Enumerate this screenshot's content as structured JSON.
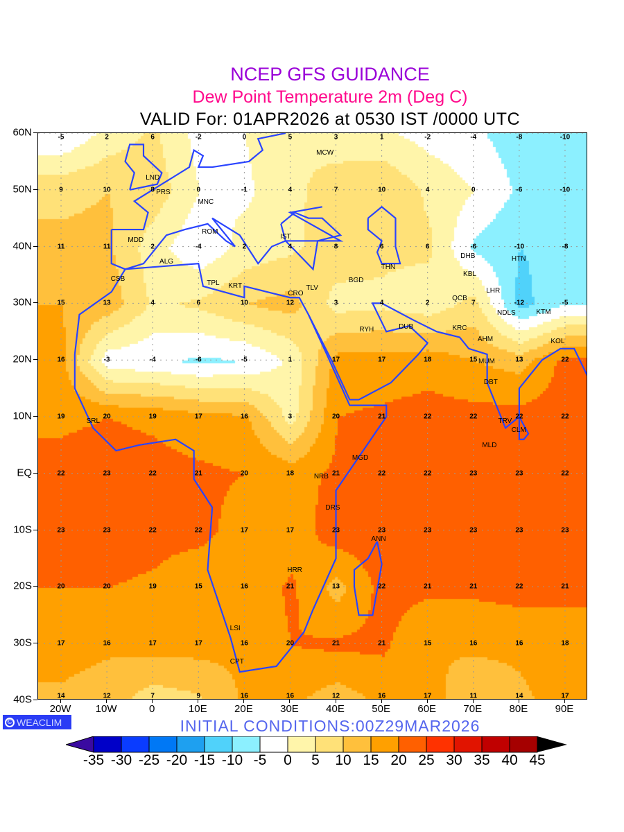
{
  "header": {
    "title": "NCEP GFS GUIDANCE",
    "subtitle": "Dew Point Temperature 2m (Deg C)",
    "valid": "VALID For: 01APR2026 at 0530 IST /0000 UTC"
  },
  "footer": {
    "badge_icon": "copyright-icon",
    "badge": "WEACLIM",
    "initial_conditions": "INITIAL CONDITIONS:00Z29MAR2026"
  },
  "map": {
    "lon_range": [
      -25,
      95
    ],
    "lat_range": [
      -40,
      60
    ],
    "lat_labels": [
      {
        "lat": 60,
        "text": "60N"
      },
      {
        "lat": 50,
        "text": "50N"
      },
      {
        "lat": 40,
        "text": "40N"
      },
      {
        "lat": 30,
        "text": "30N"
      },
      {
        "lat": 20,
        "text": "20N"
      },
      {
        "lat": 10,
        "text": "10N"
      },
      {
        "lat": 0,
        "text": "EQ"
      },
      {
        "lat": -10,
        "text": "10S"
      },
      {
        "lat": -20,
        "text": "20S"
      },
      {
        "lat": -30,
        "text": "30S"
      },
      {
        "lat": -40,
        "text": "40S"
      }
    ],
    "lon_labels": [
      {
        "lon": -20,
        "text": "20W"
      },
      {
        "lon": -10,
        "text": "10W"
      },
      {
        "lon": 0,
        "text": "0"
      },
      {
        "lon": 10,
        "text": "10E"
      },
      {
        "lon": 20,
        "text": "20E"
      },
      {
        "lon": 30,
        "text": "30E"
      },
      {
        "lon": 40,
        "text": "40E"
      },
      {
        "lon": 50,
        "text": "50E"
      },
      {
        "lon": 60,
        "text": "60E"
      },
      {
        "lon": 70,
        "text": "70E"
      },
      {
        "lon": 80,
        "text": "80E"
      },
      {
        "lon": 90,
        "text": "90E"
      }
    ],
    "grid_lons": [
      -20,
      -10,
      0,
      10,
      20,
      30,
      40,
      50,
      60,
      70,
      80,
      90
    ],
    "grid_lats": [
      60,
      50,
      40,
      30,
      20,
      10,
      0,
      -10,
      -20,
      -30,
      -40
    ],
    "dewpoint_grid": [
      [
        -5,
        2,
        6,
        -2,
        0,
        5,
        3,
        1,
        -2,
        -4,
        -8,
        -10
      ],
      [
        9,
        10,
        8,
        0,
        -1,
        4,
        7,
        10,
        4,
        0,
        -6,
        -10
      ],
      [
        11,
        11,
        2,
        -4,
        2,
        4,
        8,
        6,
        6,
        -6,
        -10,
        -8
      ],
      [
        15,
        13,
        4,
        6,
        10,
        12,
        3,
        4,
        2,
        7,
        -12,
        -5
      ],
      [
        16,
        -3,
        -4,
        -6,
        -5,
        1,
        17,
        17,
        18,
        15,
        13,
        22
      ],
      [
        19,
        20,
        19,
        17,
        16,
        3,
        20,
        21,
        22,
        22,
        22,
        22
      ],
      [
        22,
        23,
        22,
        21,
        20,
        18,
        21,
        22,
        22,
        23,
        23,
        22
      ],
      [
        23,
        23,
        22,
        22,
        17,
        17,
        23,
        23,
        23,
        23,
        23,
        23
      ],
      [
        20,
        20,
        19,
        15,
        16,
        21,
        13,
        22,
        21,
        21,
        22,
        21
      ],
      [
        17,
        16,
        17,
        17,
        16,
        20,
        21,
        21,
        15,
        16,
        16,
        18
      ],
      [
        14,
        12,
        7,
        9,
        16,
        16,
        12,
        16,
        17,
        11,
        14,
        17
      ]
    ],
    "stations": [
      {
        "id": "MCW",
        "lon": 37.6,
        "lat": 55.8
      },
      {
        "id": "LND",
        "lon": 0,
        "lat": 51.5
      },
      {
        "id": "PRS",
        "lon": 2.3,
        "lat": 48.9
      },
      {
        "id": "MNC",
        "lon": 11.6,
        "lat": 48.1
      },
      {
        "id": "MDD",
        "lon": -3.7,
        "lat": 40.4
      },
      {
        "id": "ROM",
        "lon": 12.5,
        "lat": 41.9
      },
      {
        "id": "IST",
        "lon": 29,
        "lat": 41
      },
      {
        "id": "ALG",
        "lon": 3,
        "lat": 36.7
      },
      {
        "id": "CSB",
        "lon": -7.6,
        "lat": 33.6
      },
      {
        "id": "TPL",
        "lon": 13.2,
        "lat": 32.9
      },
      {
        "id": "KRT",
        "lon": 18,
        "lat": 32.4
      },
      {
        "id": "CRO",
        "lon": 31.2,
        "lat": 30
      },
      {
        "id": "TLV",
        "lon": 34.8,
        "lat": 32
      },
      {
        "id": "BGD",
        "lon": 44.4,
        "lat": 33.3
      },
      {
        "id": "THN",
        "lon": 51.4,
        "lat": 35.7
      },
      {
        "id": "DHB",
        "lon": 68.8,
        "lat": 38.6
      },
      {
        "id": "HTN",
        "lon": 79.9,
        "lat": 37.1
      },
      {
        "id": "KBL",
        "lon": 69.2,
        "lat": 34.5
      },
      {
        "id": "LHR",
        "lon": 74.3,
        "lat": 31.5
      },
      {
        "id": "QCB",
        "lon": 67,
        "lat": 30.2
      },
      {
        "id": "NDLS",
        "lon": 77.2,
        "lat": 28.6
      },
      {
        "id": "KTM",
        "lon": 85.3,
        "lat": 27.7
      },
      {
        "id": "KRC",
        "lon": 67,
        "lat": 24.9
      },
      {
        "id": "DUB",
        "lon": 55.3,
        "lat": 25.2
      },
      {
        "id": "RYH",
        "lon": 46.7,
        "lat": 24.7
      },
      {
        "id": "AHM",
        "lon": 72.6,
        "lat": 23
      },
      {
        "id": "MUM",
        "lon": 72.9,
        "lat": 19
      },
      {
        "id": "KOL",
        "lon": 88.4,
        "lat": 22.6
      },
      {
        "id": "DBT",
        "lon": 73.8,
        "lat": 15.4
      },
      {
        "id": "TRV",
        "lon": 76.9,
        "lat": 8.5
      },
      {
        "id": "CLM",
        "lon": 79.9,
        "lat": 6.9
      },
      {
        "id": "MLD",
        "lon": 73.5,
        "lat": 4.2
      },
      {
        "id": "MGD",
        "lon": 45.3,
        "lat": 2
      },
      {
        "id": "NRB",
        "lon": 36.8,
        "lat": -1.3
      },
      {
        "id": "DRS",
        "lon": 39.3,
        "lat": -6.8
      },
      {
        "id": "ANN",
        "lon": 49.3,
        "lat": -12.3
      },
      {
        "id": "HRR",
        "lon": 31,
        "lat": -17.8
      },
      {
        "id": "LSI",
        "lon": 18,
        "lat": -28
      },
      {
        "id": "CPT",
        "lon": 18.4,
        "lat": -33.9
      },
      {
        "id": "SRL",
        "lon": -13,
        "lat": 8.5
      }
    ]
  },
  "colorbar": {
    "levels": [
      -35,
      -30,
      -25,
      -20,
      -15,
      -10,
      -5,
      0,
      5,
      10,
      15,
      20,
      25,
      30,
      35,
      40,
      45
    ],
    "labels": [
      "-35",
      "-30",
      "-25",
      "-20",
      "-15",
      "-10",
      "-5",
      "0",
      "5",
      "10",
      "15",
      "20",
      "25",
      "30",
      "35",
      "40",
      "45"
    ],
    "colors": [
      "#3a0aa0",
      "#0000c8",
      "#0a3cff",
      "#0078f5",
      "#1ea0f0",
      "#50d2fa",
      "#8cf0ff",
      "#ffffff",
      "#fff5aa",
      "#ffe178",
      "#ffc03c",
      "#ffa000",
      "#ff6000",
      "#ff3200",
      "#e11400",
      "#c00000",
      "#a50000",
      "#000000"
    ],
    "coast_color": "#2a44ff"
  }
}
